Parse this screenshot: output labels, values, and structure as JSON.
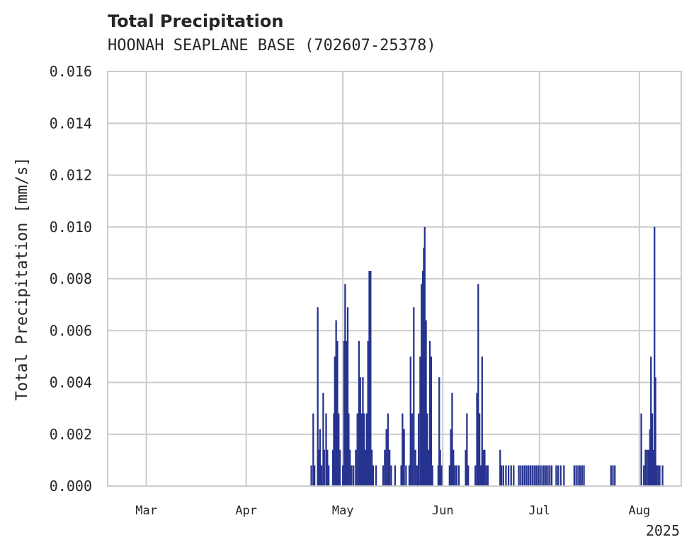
{
  "chart_data": {
    "type": "bar",
    "title": "Total Precipitation",
    "subtitle": "HOONAH SEAPLANE BASE (702607-25378)",
    "ylabel": "Total Precipitation [mm/s]",
    "xlabel": "",
    "ylim": [
      0,
      0.016
    ],
    "yticks": [
      "0.000",
      "0.002",
      "0.004",
      "0.006",
      "0.008",
      "0.010",
      "0.012",
      "0.014",
      "0.016"
    ],
    "xlim_days": [
      -11,
      167
    ],
    "xticks": [
      {
        "label": "Mar",
        "day": 1
      },
      {
        "label": "Apr",
        "day": 32
      },
      {
        "label": "May",
        "day": 62
      },
      {
        "label": "Jun",
        "day": 93
      },
      {
        "label": "Jul",
        "day": 123
      },
      {
        "label": "Aug",
        "day": 154
      }
    ],
    "year_label": "2025",
    "color": "#26338f",
    "grid": true,
    "x_units": "day offset from Mar 1, 2025",
    "series": [
      {
        "name": "Total Precipitation",
        "points": [
          [
            52.2,
            0.0008
          ],
          [
            52.8,
            0.0028
          ],
          [
            53.2,
            0.0008
          ],
          [
            54.2,
            0.0069
          ],
          [
            54.5,
            0.0014
          ],
          [
            54.9,
            0.0022
          ],
          [
            55.4,
            0.0008
          ],
          [
            55.9,
            0.0036
          ],
          [
            56.2,
            0.0014
          ],
          [
            56.8,
            0.0028
          ],
          [
            57.2,
            0.0014
          ],
          [
            57.6,
            0.0008
          ],
          [
            58.9,
            0.0014
          ],
          [
            59.2,
            0.0028
          ],
          [
            59.5,
            0.005
          ],
          [
            59.9,
            0.0064
          ],
          [
            60.3,
            0.0056
          ],
          [
            60.7,
            0.0028
          ],
          [
            61.1,
            0.0014
          ],
          [
            62.0,
            0.0008
          ],
          [
            62.4,
            0.0056
          ],
          [
            62.7,
            0.0078
          ],
          [
            63.1,
            0.0056
          ],
          [
            63.5,
            0.0069
          ],
          [
            63.8,
            0.0028
          ],
          [
            64.2,
            0.0014
          ],
          [
            64.7,
            0.0008
          ],
          [
            65.3,
            0.0008
          ],
          [
            66.0,
            0.0014
          ],
          [
            66.5,
            0.0028
          ],
          [
            67.0,
            0.0056
          ],
          [
            67.4,
            0.0042
          ],
          [
            67.8,
            0.0028
          ],
          [
            68.2,
            0.0042
          ],
          [
            68.6,
            0.0028
          ],
          [
            69.0,
            0.0014
          ],
          [
            69.4,
            0.0028
          ],
          [
            69.8,
            0.0056
          ],
          [
            70.2,
            0.0083
          ],
          [
            70.6,
            0.0083
          ],
          [
            71.0,
            0.0014
          ],
          [
            71.4,
            0.0008
          ],
          [
            72.3,
            0.0008
          ],
          [
            74.5,
            0.0008
          ],
          [
            75.0,
            0.0014
          ],
          [
            75.5,
            0.0022
          ],
          [
            76.0,
            0.0028
          ],
          [
            76.5,
            0.0014
          ],
          [
            77.0,
            0.0008
          ],
          [
            78.2,
            0.0008
          ],
          [
            80.1,
            0.0008
          ],
          [
            80.5,
            0.0028
          ],
          [
            81.0,
            0.0022
          ],
          [
            81.6,
            0.0008
          ],
          [
            82.6,
            0.0008
          ],
          [
            83.0,
            0.005
          ],
          [
            83.5,
            0.0028
          ],
          [
            84.0,
            0.0069
          ],
          [
            84.5,
            0.0014
          ],
          [
            85.0,
            0.0008
          ],
          [
            85.5,
            0.0028
          ],
          [
            86.0,
            0.005
          ],
          [
            86.4,
            0.0078
          ],
          [
            86.8,
            0.0083
          ],
          [
            87.1,
            0.0092
          ],
          [
            87.4,
            0.01
          ],
          [
            87.8,
            0.0064
          ],
          [
            88.2,
            0.0028
          ],
          [
            88.6,
            0.0014
          ],
          [
            89.0,
            0.0056
          ],
          [
            89.4,
            0.005
          ],
          [
            89.8,
            0.0008
          ],
          [
            91.6,
            0.0008
          ],
          [
            91.9,
            0.0042
          ],
          [
            92.2,
            0.0014
          ],
          [
            92.6,
            0.0008
          ],
          [
            95.1,
            0.0008
          ],
          [
            95.5,
            0.0022
          ],
          [
            95.9,
            0.0036
          ],
          [
            96.3,
            0.0014
          ],
          [
            96.8,
            0.0008
          ],
          [
            97.3,
            0.0008
          ],
          [
            98.0,
            0.0008
          ],
          [
            100.1,
            0.0014
          ],
          [
            100.5,
            0.0028
          ],
          [
            100.9,
            0.0008
          ],
          [
            103.1,
            0.0008
          ],
          [
            103.6,
            0.0036
          ],
          [
            104.0,
            0.0078
          ],
          [
            104.4,
            0.0028
          ],
          [
            104.8,
            0.0008
          ],
          [
            105.2,
            0.005
          ],
          [
            105.6,
            0.0014
          ],
          [
            106.0,
            0.0014
          ],
          [
            106.5,
            0.0008
          ],
          [
            107.0,
            0.0008
          ],
          [
            110.8,
            0.0014
          ],
          [
            111.2,
            0.0008
          ],
          [
            111.8,
            0.0008
          ],
          [
            112.6,
            0.0008
          ],
          [
            113.4,
            0.0008
          ],
          [
            114.2,
            0.0008
          ],
          [
            115.0,
            0.0008
          ],
          [
            116.6,
            0.0008
          ],
          [
            117.2,
            0.0008
          ],
          [
            117.8,
            0.0008
          ],
          [
            118.4,
            0.0008
          ],
          [
            119.0,
            0.0008
          ],
          [
            119.6,
            0.0008
          ],
          [
            120.2,
            0.0008
          ],
          [
            120.8,
            0.0008
          ],
          [
            121.4,
            0.0008
          ],
          [
            122.0,
            0.0008
          ],
          [
            122.6,
            0.0008
          ],
          [
            123.2,
            0.0008
          ],
          [
            123.8,
            0.0008
          ],
          [
            124.4,
            0.0008
          ],
          [
            125.0,
            0.0008
          ],
          [
            125.6,
            0.0008
          ],
          [
            126.2,
            0.0008
          ],
          [
            126.8,
            0.0008
          ],
          [
            128.2,
            0.0008
          ],
          [
            128.8,
            0.0008
          ],
          [
            129.6,
            0.0008
          ],
          [
            130.6,
            0.0008
          ],
          [
            133.8,
            0.0008
          ],
          [
            134.4,
            0.0008
          ],
          [
            135.0,
            0.0008
          ],
          [
            135.6,
            0.0008
          ],
          [
            136.2,
            0.0008
          ],
          [
            136.8,
            0.0008
          ],
          [
            145.2,
            0.0008
          ],
          [
            145.8,
            0.0008
          ],
          [
            146.4,
            0.0008
          ],
          [
            154.6,
            0.0028
          ],
          [
            155.4,
            0.0008
          ],
          [
            155.9,
            0.0014
          ],
          [
            156.4,
            0.0014
          ],
          [
            156.9,
            0.0014
          ],
          [
            157.3,
            0.0022
          ],
          [
            157.6,
            0.005
          ],
          [
            158.0,
            0.0028
          ],
          [
            158.4,
            0.0014
          ],
          [
            158.7,
            0.01
          ],
          [
            159.0,
            0.0042
          ],
          [
            159.3,
            0.0008
          ],
          [
            159.8,
            0.0008
          ],
          [
            160.3,
            0.0008
          ],
          [
            161.2,
            0.0008
          ]
        ]
      }
    ]
  }
}
